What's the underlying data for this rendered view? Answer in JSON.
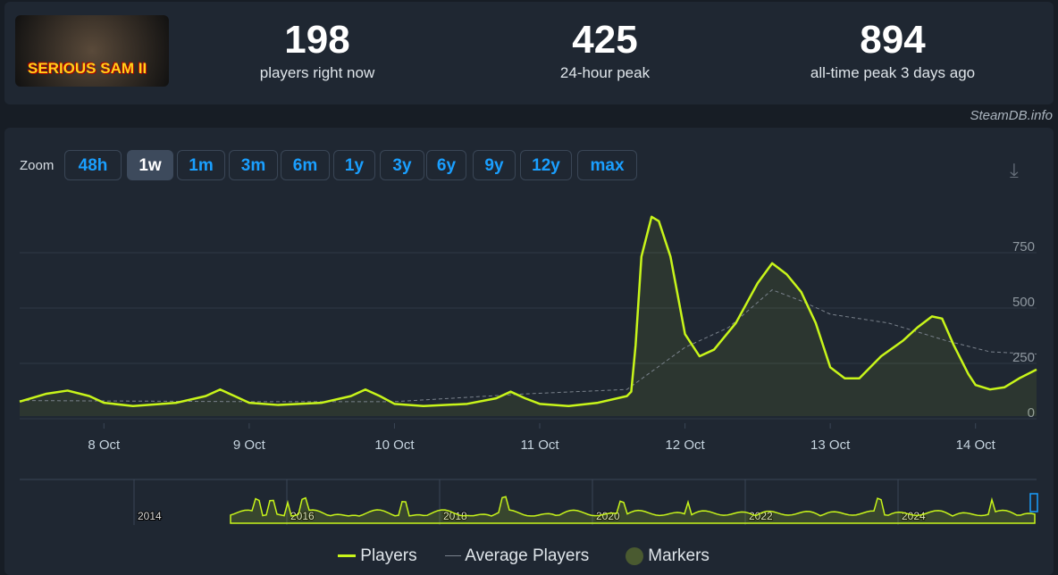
{
  "game": {
    "logo_text": "SERIOUS SAM II"
  },
  "stats": [
    {
      "value": "198",
      "label": "players right now"
    },
    {
      "value": "425",
      "label": "24-hour peak"
    },
    {
      "value": "894",
      "label": "all-time peak 3 days ago"
    }
  ],
  "credit": "SteamDB.info",
  "zoom": {
    "label": "Zoom",
    "buttons": [
      "48h",
      "1w",
      "1m",
      "3m",
      "6m",
      "1y",
      "3y",
      "6y",
      "9y",
      "12y",
      "max"
    ],
    "active": "1w"
  },
  "colors": {
    "players": "#c8f51a",
    "average": "#7a828c"
  },
  "chart_data": {
    "type": "line",
    "x_unit": "day of October",
    "xticks": [
      "8 Oct",
      "9 Oct",
      "10 Oct",
      "11 Oct",
      "12 Oct",
      "13 Oct",
      "14 Oct"
    ],
    "yticks": [
      "0",
      "250",
      "500",
      "750"
    ],
    "xlim": [
      7.42,
      14.42
    ],
    "ylim": [
      0,
      950
    ],
    "series": [
      {
        "name": "Players",
        "points": [
          [
            7.42,
            45
          ],
          [
            7.6,
            80
          ],
          [
            7.75,
            95
          ],
          [
            7.9,
            70
          ],
          [
            8.0,
            40
          ],
          [
            8.2,
            25
          ],
          [
            8.5,
            40
          ],
          [
            8.7,
            70
          ],
          [
            8.8,
            100
          ],
          [
            8.9,
            70
          ],
          [
            9.0,
            40
          ],
          [
            9.2,
            30
          ],
          [
            9.5,
            40
          ],
          [
            9.7,
            70
          ],
          [
            9.8,
            100
          ],
          [
            9.9,
            70
          ],
          [
            10.0,
            35
          ],
          [
            10.2,
            25
          ],
          [
            10.5,
            35
          ],
          [
            10.7,
            60
          ],
          [
            10.8,
            90
          ],
          [
            10.9,
            60
          ],
          [
            11.0,
            35
          ],
          [
            11.2,
            25
          ],
          [
            11.4,
            40
          ],
          [
            11.6,
            70
          ],
          [
            11.63,
            90
          ],
          [
            11.66,
            300
          ],
          [
            11.7,
            700
          ],
          [
            11.77,
            880
          ],
          [
            11.82,
            860
          ],
          [
            11.9,
            700
          ],
          [
            12.0,
            350
          ],
          [
            12.1,
            250
          ],
          [
            12.2,
            280
          ],
          [
            12.35,
            400
          ],
          [
            12.5,
            580
          ],
          [
            12.6,
            670
          ],
          [
            12.7,
            620
          ],
          [
            12.8,
            540
          ],
          [
            12.9,
            400
          ],
          [
            13.0,
            200
          ],
          [
            13.1,
            150
          ],
          [
            13.2,
            150
          ],
          [
            13.35,
            250
          ],
          [
            13.5,
            320
          ],
          [
            13.6,
            380
          ],
          [
            13.7,
            430
          ],
          [
            13.77,
            420
          ],
          [
            13.85,
            300
          ],
          [
            13.95,
            170
          ],
          [
            14.0,
            120
          ],
          [
            14.1,
            100
          ],
          [
            14.2,
            110
          ],
          [
            14.3,
            150
          ],
          [
            14.42,
            190
          ]
        ]
      },
      {
        "name": "Average Players",
        "points": [
          [
            7.42,
            50
          ],
          [
            9,
            45
          ],
          [
            10,
            45
          ],
          [
            10.9,
            80
          ],
          [
            11.6,
            100
          ],
          [
            12.0,
            290
          ],
          [
            12.3,
            380
          ],
          [
            12.6,
            550
          ],
          [
            12.8,
            500
          ],
          [
            13.0,
            440
          ],
          [
            13.4,
            400
          ],
          [
            13.8,
            320
          ],
          [
            14.1,
            270
          ],
          [
            14.42,
            260
          ]
        ]
      }
    ],
    "navigator": {
      "years": [
        "2014",
        "2016",
        "2018",
        "2020",
        "2022",
        "2024"
      ]
    },
    "legend": [
      "Players",
      "Average Players",
      "Markers"
    ]
  }
}
